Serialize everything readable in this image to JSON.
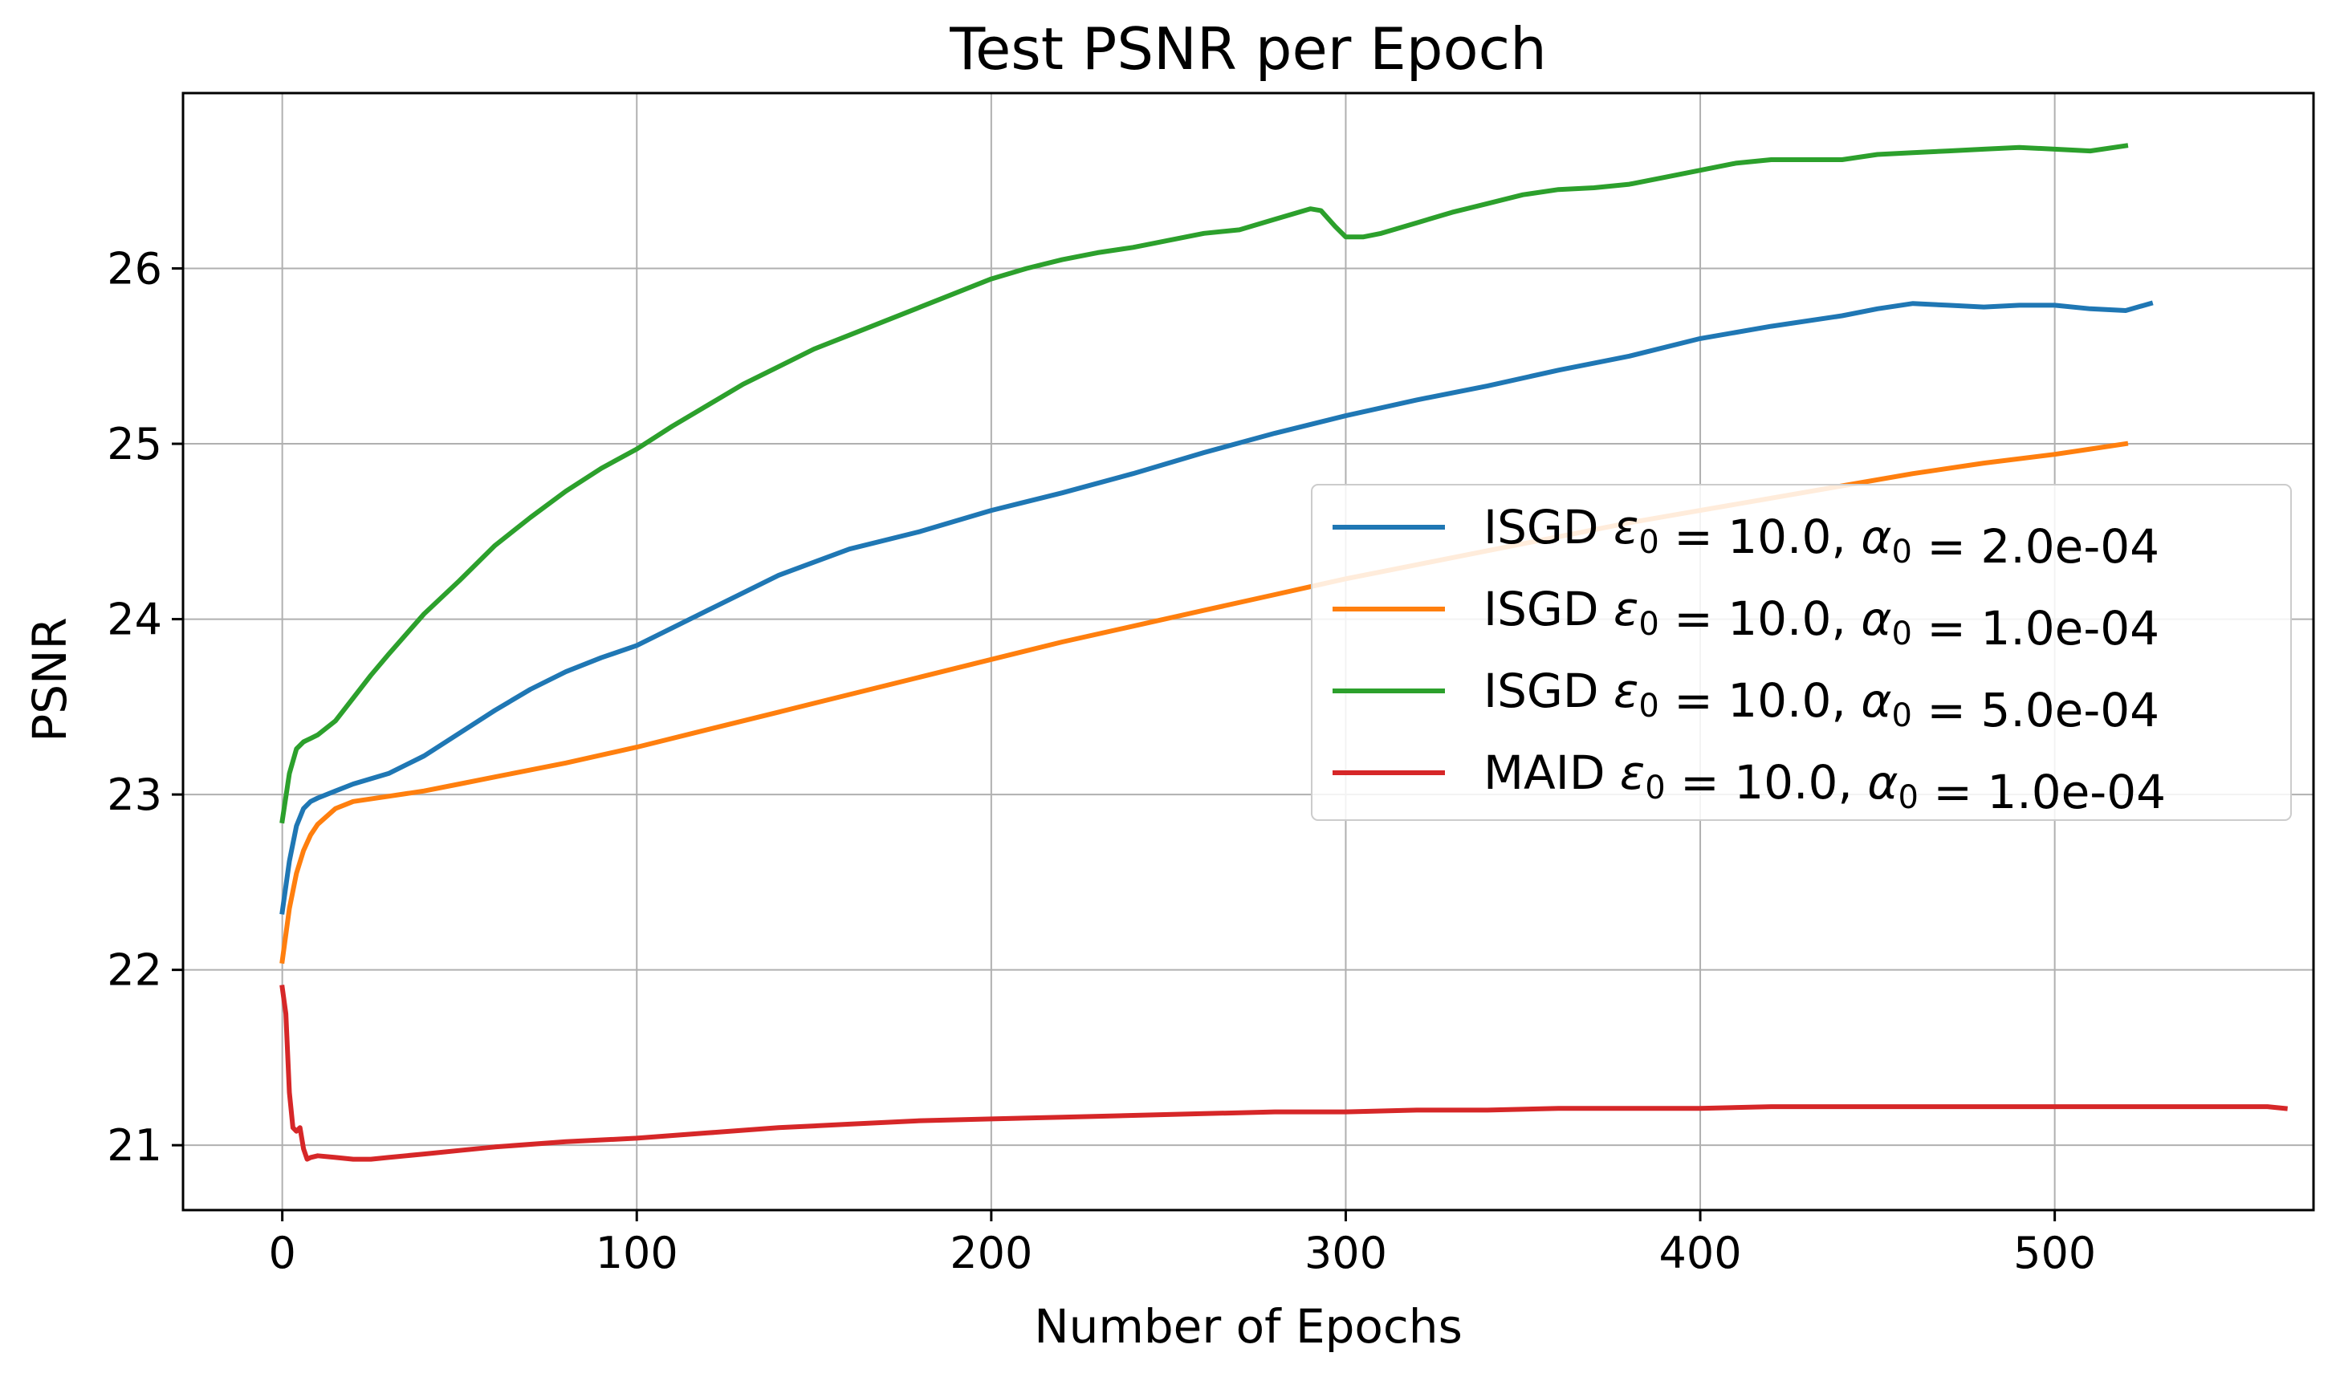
{
  "chart_data": {
    "type": "line",
    "title": "Test PSNR per Epoch",
    "xlabel": "Number of Epochs",
    "ylabel": "PSNR",
    "xlim": [
      -28,
      573
    ],
    "ylim": [
      20.63,
      27.0
    ],
    "xticks": [
      0,
      100,
      200,
      300,
      400,
      500
    ],
    "xtick_labels": [
      "0",
      "100",
      "200",
      "300",
      "400",
      "500"
    ],
    "yticks": [
      21,
      22,
      23,
      24,
      25,
      26
    ],
    "ytick_labels": [
      "21",
      "22",
      "23",
      "24",
      "25",
      "26"
    ],
    "grid": true,
    "legend_position": "center-right",
    "series": [
      {
        "name": "ISGD ε0 = 10.0, α0 = 2.0e-04",
        "legend": {
          "method": "ISGD",
          "eps_value": "= 10.0,",
          "alpha_value": "= 2.0e-04",
          "eps_symbol": "ε",
          "alpha_symbol": "α",
          "subscript": "0"
        },
        "color": "#1f77b4",
        "x": [
          0,
          2,
          4,
          6,
          8,
          10,
          15,
          20,
          30,
          40,
          50,
          60,
          70,
          80,
          90,
          100,
          120,
          140,
          160,
          180,
          200,
          220,
          240,
          260,
          280,
          300,
          320,
          340,
          360,
          380,
          400,
          420,
          440,
          450,
          460,
          470,
          480,
          490,
          500,
          510,
          520,
          527
        ],
        "y": [
          22.33,
          22.62,
          22.82,
          22.92,
          22.96,
          22.98,
          23.02,
          23.06,
          23.12,
          23.22,
          23.35,
          23.48,
          23.6,
          23.7,
          23.78,
          23.85,
          24.05,
          24.25,
          24.4,
          24.5,
          24.62,
          24.72,
          24.83,
          24.95,
          25.06,
          25.16,
          25.25,
          25.33,
          25.42,
          25.5,
          25.6,
          25.67,
          25.73,
          25.77,
          25.8,
          25.79,
          25.78,
          25.79,
          25.79,
          25.77,
          25.76,
          25.8
        ]
      },
      {
        "name": "ISGD ε0 = 10.0, α0 = 1.0e-04",
        "legend": {
          "method": "ISGD",
          "eps_value": "= 10.0,",
          "alpha_value": "= 1.0e-04",
          "eps_symbol": "ε",
          "alpha_symbol": "α",
          "subscript": "0"
        },
        "color": "#ff7f0e",
        "x": [
          0,
          2,
          4,
          6,
          8,
          10,
          15,
          20,
          30,
          40,
          50,
          60,
          80,
          100,
          120,
          140,
          160,
          180,
          200,
          220,
          240,
          260,
          280,
          300,
          320,
          340,
          360,
          380,
          400,
          420,
          440,
          460,
          480,
          500,
          510,
          520
        ],
        "y": [
          22.05,
          22.35,
          22.55,
          22.68,
          22.77,
          22.83,
          22.92,
          22.96,
          22.99,
          23.02,
          23.06,
          23.1,
          23.18,
          23.27,
          23.37,
          23.47,
          23.57,
          23.67,
          23.77,
          23.87,
          23.96,
          24.05,
          24.14,
          24.23,
          24.31,
          24.39,
          24.47,
          24.55,
          24.62,
          24.69,
          24.76,
          24.83,
          24.89,
          24.94,
          24.97,
          25.0
        ]
      },
      {
        "name": "ISGD ε0 = 10.0, α0 = 5.0e-04",
        "legend": {
          "method": "ISGD",
          "eps_value": "= 10.0,",
          "alpha_value": "= 5.0e-04",
          "eps_symbol": "ε",
          "alpha_symbol": "α",
          "subscript": "0"
        },
        "color": "#2ca02c",
        "x": [
          0,
          2,
          4,
          6,
          8,
          10,
          15,
          20,
          25,
          30,
          40,
          50,
          60,
          70,
          80,
          90,
          100,
          110,
          120,
          130,
          140,
          150,
          160,
          170,
          180,
          190,
          200,
          210,
          220,
          230,
          240,
          250,
          260,
          270,
          280,
          285,
          290,
          293,
          297,
          300,
          305,
          310,
          320,
          330,
          340,
          350,
          360,
          370,
          380,
          390,
          400,
          410,
          420,
          430,
          440,
          450,
          460,
          470,
          480,
          490,
          500,
          510,
          520
        ],
        "y": [
          22.85,
          23.12,
          23.26,
          23.3,
          23.32,
          23.34,
          23.42,
          23.55,
          23.68,
          23.8,
          24.03,
          24.22,
          24.42,
          24.58,
          24.73,
          24.86,
          24.97,
          25.1,
          25.22,
          25.34,
          25.44,
          25.54,
          25.62,
          25.7,
          25.78,
          25.86,
          25.94,
          26.0,
          26.05,
          26.09,
          26.12,
          26.16,
          26.2,
          26.22,
          26.28,
          26.31,
          26.34,
          26.33,
          26.24,
          26.18,
          26.18,
          26.2,
          26.26,
          26.32,
          26.37,
          26.42,
          26.45,
          26.46,
          26.48,
          26.52,
          26.56,
          26.6,
          26.62,
          26.62,
          26.62,
          26.65,
          26.66,
          26.67,
          26.68,
          26.69,
          26.68,
          26.67,
          26.7
        ]
      },
      {
        "name": "MAID ε0 = 10.0, α0 = 1.0e-04",
        "legend": {
          "method": "MAID",
          "eps_value": "= 10.0,",
          "alpha_value": "= 1.0e-04",
          "eps_symbol": "ε",
          "alpha_symbol": "α",
          "subscript": "0"
        },
        "color": "#d62728",
        "x": [
          0,
          1,
          2,
          3,
          4,
          5,
          6,
          7,
          8,
          10,
          15,
          20,
          25,
          30,
          40,
          50,
          60,
          80,
          100,
          120,
          140,
          160,
          180,
          200,
          220,
          240,
          260,
          280,
          300,
          320,
          340,
          360,
          380,
          400,
          420,
          440,
          460,
          480,
          500,
          520,
          540,
          560,
          565
        ],
        "y": [
          21.9,
          21.75,
          21.3,
          21.1,
          21.08,
          21.1,
          20.98,
          20.92,
          20.93,
          20.94,
          20.93,
          20.92,
          20.92,
          20.93,
          20.95,
          20.97,
          20.99,
          21.02,
          21.04,
          21.07,
          21.1,
          21.12,
          21.14,
          21.15,
          21.16,
          21.17,
          21.18,
          21.19,
          21.19,
          21.2,
          21.2,
          21.21,
          21.21,
          21.21,
          21.22,
          21.22,
          21.22,
          21.22,
          21.22,
          21.22,
          21.22,
          21.22,
          21.21
        ]
      }
    ]
  }
}
